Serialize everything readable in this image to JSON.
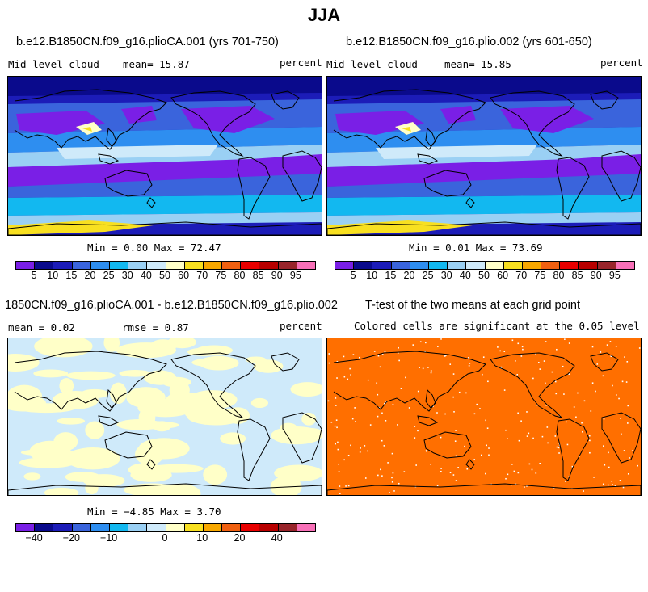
{
  "page_title": "JJA",
  "land_color": "#000000",
  "panels": {
    "top_left": {
      "title": "b.e12.B1850CN.f09_g16.plioCA.001 (yrs 701-750)",
      "variable": "Mid-level cloud",
      "mean": "mean=  15.87",
      "units": "percent",
      "minmax": "Min =    0.00 Max =   72.47"
    },
    "top_right": {
      "title": "b.e12.B1850CN.f09_g16.plio.002 (yrs 601-650)",
      "variable": "Mid-level cloud",
      "mean": "mean=  15.85",
      "units": "percent",
      "minmax": "Min =    0.01 Max =   73.69"
    },
    "bottom_left": {
      "title": "1850CN.f09_g16.plioCA.001 - b.e12.B1850CN.f09_g16.plio.002",
      "mean": "mean =    0.02",
      "rmse": "rmse =    0.87",
      "units": "percent",
      "minmax": "Min =  −4.85 Max =    3.70"
    },
    "bottom_right": {
      "title": "T-test of the two means at each grid point",
      "subtitle": "Colored cells are significant at the 0.05 level",
      "fill_color": "#ff6f00"
    }
  },
  "colorbar_abs": {
    "colors": [
      "#7a1fe6",
      "#0a0a8c",
      "#1c1cb8",
      "#3a64dc",
      "#2e8ef0",
      "#12b8f0",
      "#9ad0f4",
      "#cfeafa",
      "#ffffc8",
      "#f8e020",
      "#f8a800",
      "#f06010",
      "#e80000",
      "#b80000",
      "#98242a",
      "#f870b8"
    ],
    "labels": [
      "5",
      "10",
      "15",
      "20",
      "25",
      "30",
      "40",
      "50",
      "60",
      "70",
      "75",
      "80",
      "85",
      "90",
      "95"
    ]
  },
  "colorbar_diff": {
    "colors": [
      "#7a1fe6",
      "#0a0a8c",
      "#1c1cb8",
      "#3a64dc",
      "#2e8ef0",
      "#12b8f0",
      "#9ad0f4",
      "#cfeafa",
      "#ffffc8",
      "#f8e020",
      "#f8a800",
      "#f06010",
      "#e80000",
      "#b80000",
      "#98242a",
      "#f870b8"
    ],
    "labels": [
      "−40",
      "−20",
      "−10",
      "0",
      "10",
      "20",
      "40"
    ],
    "label_boundaries": [
      1,
      3,
      5,
      8,
      10,
      12,
      14
    ]
  }
}
